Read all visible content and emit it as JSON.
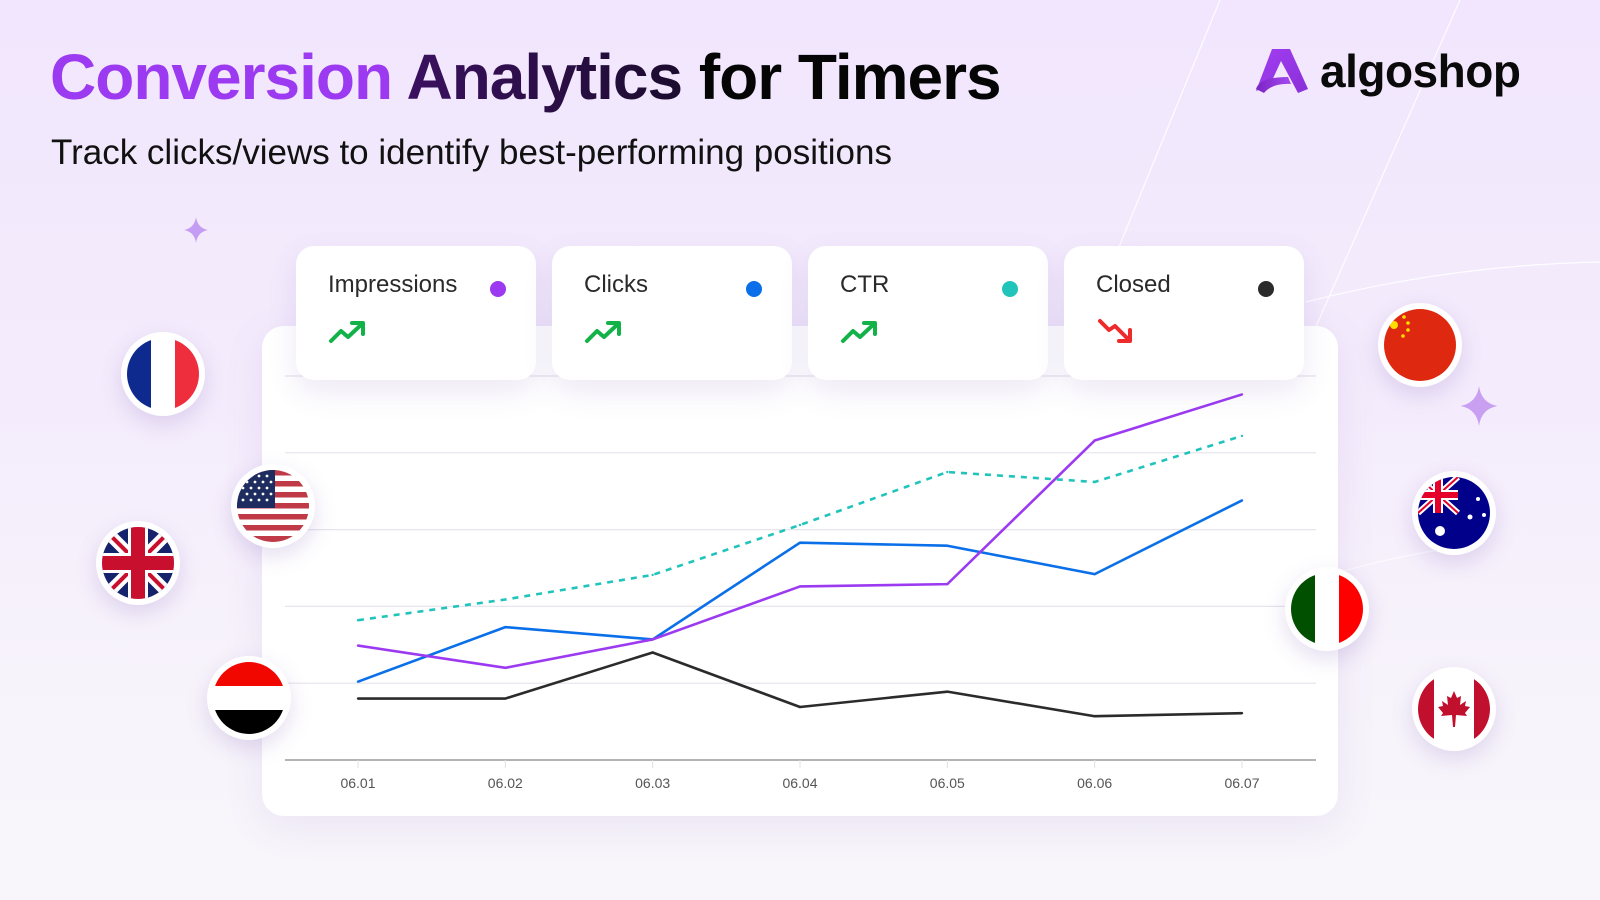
{
  "header": {
    "title_part1": "Conversion",
    "title_part2": "Analytics",
    "title_part3": "for Timers",
    "subtitle": "Track clicks/views to identify best-performing positions"
  },
  "brand": {
    "name": "algoshop",
    "logo_icon": "algoshop-a-logo-icon",
    "color": "#9b3af0"
  },
  "metrics": [
    {
      "label": "Impressions",
      "color": "#9b3af0",
      "trend": "up",
      "trend_icon": "trending-up-icon",
      "trend_color": "#12b248"
    },
    {
      "label": "Clicks",
      "color": "#0a6fe8",
      "trend": "up",
      "trend_icon": "trending-up-icon",
      "trend_color": "#12b248"
    },
    {
      "label": "CTR",
      "color": "#20c4bb",
      "trend": "up",
      "trend_icon": "trending-up-icon",
      "trend_color": "#12b248"
    },
    {
      "label": "Closed",
      "color": "#2b2b2b",
      "trend": "down",
      "trend_icon": "trending-down-icon",
      "trend_color": "#ee2a2a"
    }
  ],
  "flags": [
    {
      "country": "France",
      "icon": "france-flag-icon"
    },
    {
      "country": "United States",
      "icon": "usa-flag-icon"
    },
    {
      "country": "United Kingdom",
      "icon": "uk-flag-icon"
    },
    {
      "country": "Yemen",
      "icon": "yemen-flag-icon"
    },
    {
      "country": "China",
      "icon": "china-flag-icon"
    },
    {
      "country": "Australia",
      "icon": "australia-flag-icon"
    },
    {
      "country": "Italy",
      "icon": "italy-flag-icon"
    },
    {
      "country": "Canada",
      "icon": "canada-flag-icon"
    }
  ],
  "chart_data": {
    "type": "line",
    "title": "",
    "xlabel": "",
    "ylabel": "",
    "categories": [
      "06.01",
      "06.02",
      "06.03",
      "06.04",
      "06.05",
      "06.06",
      "06.07"
    ],
    "ylim": [
      0,
      5
    ],
    "grid": true,
    "series": [
      {
        "name": "Impressions",
        "color": "#9b3af0",
        "dashed": false,
        "values": [
          1.49,
          1.2,
          1.57,
          2.26,
          2.29,
          4.16,
          4.76
        ]
      },
      {
        "name": "Clicks",
        "color": "#0a6fe8",
        "dashed": false,
        "values": [
          1.02,
          1.73,
          1.57,
          2.83,
          2.79,
          2.42,
          3.38
        ]
      },
      {
        "name": "CTR",
        "color": "#20c4bb",
        "dashed": true,
        "values": [
          1.82,
          2.09,
          2.41,
          3.06,
          3.75,
          3.62,
          4.22
        ]
      },
      {
        "name": "Closed",
        "color": "#2b2b2b",
        "dashed": false,
        "values": [
          0.8,
          0.8,
          1.4,
          0.69,
          0.89,
          0.57,
          0.61
        ]
      }
    ]
  }
}
